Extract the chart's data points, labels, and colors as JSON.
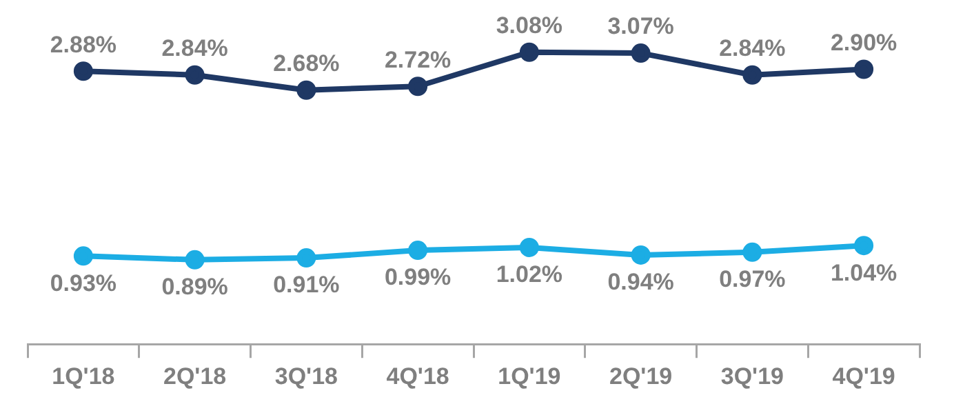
{
  "chart_data": {
    "type": "line",
    "categories": [
      "1Q'18",
      "2Q'18",
      "3Q'18",
      "4Q'18",
      "1Q'19",
      "2Q'19",
      "3Q'19",
      "4Q'19"
    ],
    "series": [
      {
        "color": "#1f3864",
        "values": [
          2.88,
          2.84,
          2.68,
          2.72,
          3.08,
          3.07,
          2.84,
          2.9
        ],
        "value_labels": [
          "2.88%",
          "2.84%",
          "2.68%",
          "2.72%",
          "3.08%",
          "3.07%",
          "2.84%",
          "2.90%"
        ]
      },
      {
        "color": "#1cade4",
        "values": [
          0.93,
          0.89,
          0.91,
          0.99,
          1.02,
          0.94,
          0.97,
          1.04
        ],
        "value_labels": [
          "0.93%",
          "0.89%",
          "0.91%",
          "0.99%",
          "1.02%",
          "0.94%",
          "0.97%",
          "1.04%"
        ]
      }
    ],
    "tick_labels": "x",
    "grid": false,
    "legend": false,
    "marker": "circle",
    "line_style": "solid"
  }
}
